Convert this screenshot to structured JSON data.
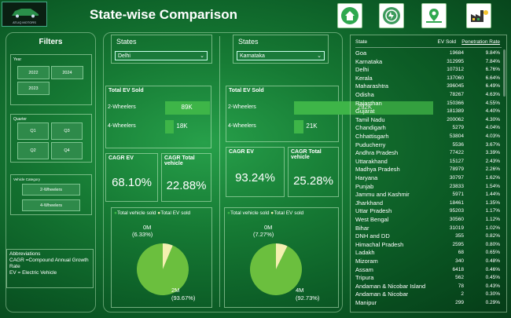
{
  "header": {
    "title": "State-wise Comparison",
    "logo_text": "ATLIQ MOTORS",
    "nav_icons": [
      "home-icon",
      "ev-icon",
      "map-icon",
      "factory-icon"
    ]
  },
  "filters": {
    "title": "Filters",
    "year": {
      "label": "Year",
      "options": [
        "2022",
        "2024",
        "2023"
      ]
    },
    "quarter": {
      "label": "Quarter",
      "options": [
        "Q1",
        "Q3",
        "Q2",
        "Q4"
      ]
    },
    "vehicle": {
      "label": "Vehicle Category",
      "options": [
        "2-Wheelers",
        "4-Wheelers"
      ]
    },
    "abbrev": {
      "heading": "Abbreviations",
      "line1": "CAGR =Compound Annual Growth Rate",
      "line2": "EV = Electric Vehicle"
    }
  },
  "left": {
    "states_label": "States",
    "selected": "Delhi",
    "total_label": "Total EV Sold",
    "cat1": "2-Wheelers",
    "cat1_val": "89K",
    "cat1_frac": 0.3,
    "cat2": "4-Wheelers",
    "cat2_val": "18K",
    "cat2_frac": 0.06,
    "cagr_label": "CAGR EV",
    "cagr_val": "68.10%",
    "cagr_total_label": "CAGR Total vehicle",
    "cagr_total_val": "22.88%",
    "legend1": "Total vehicle sold",
    "legend2": "Total EV sold",
    "pie_small": "0M",
    "pie_small_pct": "(6.33%)",
    "pie_big": "2M",
    "pie_big_pct": "(93.67%)",
    "pie_frac": 0.0633
  },
  "right": {
    "states_label": "States",
    "selected": "Karnataka",
    "total_label": "Total EV Sold",
    "cat1": "2-Wheelers",
    "cat1_val": "292K",
    "cat1_frac": 1.0,
    "cat2": "4-Wheelers",
    "cat2_val": "21K",
    "cat2_frac": 0.07,
    "cagr_label": "CAGR EV",
    "cagr_val": "93.24%",
    "cagr_total_label": "CAGR Total vehicle",
    "cagr_total_val": "25.28%",
    "legend1": "Total vehicle sold",
    "legend2": "Total EV sold",
    "pie_small": "0M",
    "pie_small_pct": "(7.27%)",
    "pie_big": "4M",
    "pie_big_pct": "(92.73%)",
    "pie_frac": 0.0727
  },
  "table": {
    "headers": [
      "State",
      "EV Sold",
      "Penetration Rate"
    ],
    "rows": [
      [
        "Goa",
        "19684",
        "9.84%"
      ],
      [
        "Karnataka",
        "312995",
        "7.84%"
      ],
      [
        "Delhi",
        "107312",
        "6.76%"
      ],
      [
        "Kerala",
        "137060",
        "6.64%"
      ],
      [
        "Maharashtra",
        "396045",
        "6.49%"
      ],
      [
        "Odisha",
        "78267",
        "4.63%"
      ],
      [
        "Rajasthan",
        "150366",
        "4.55%"
      ],
      [
        "Gujarat",
        "181389",
        "4.40%"
      ],
      [
        "Tamil Nadu",
        "200062",
        "4.30%"
      ],
      [
        "Chandigarh",
        "5279",
        "4.04%"
      ],
      [
        "Chhattisgarh",
        "53804",
        "4.03%"
      ],
      [
        "Puducherry",
        "5536",
        "3.67%"
      ],
      [
        "Andhra Pradesh",
        "77422",
        "3.39%"
      ],
      [
        "Uttarakhand",
        "15127",
        "2.43%"
      ],
      [
        "Madhya Pradesh",
        "78979",
        "2.26%"
      ],
      [
        "Haryana",
        "30797",
        "1.62%"
      ],
      [
        "Punjab",
        "23833",
        "1.54%"
      ],
      [
        "Jammu and Kashmir",
        "5971",
        "1.44%"
      ],
      [
        "Jharkhand",
        "18461",
        "1.35%"
      ],
      [
        "Uttar Pradesh",
        "95203",
        "1.17%"
      ],
      [
        "West Bengal",
        "30560",
        "1.12%"
      ],
      [
        "Bihar",
        "31019",
        "1.02%"
      ],
      [
        "DNH and DD",
        "355",
        "0.82%"
      ],
      [
        "Himachal Pradesh",
        "2595",
        "0.80%"
      ],
      [
        "Ladakh",
        "68",
        "0.65%"
      ],
      [
        "Mizoram",
        "340",
        "0.48%"
      ],
      [
        "Assam",
        "6418",
        "0.46%"
      ],
      [
        "Tripura",
        "562",
        "0.45%"
      ],
      [
        "Andaman & Nicobar Island",
        "78",
        "0.43%"
      ],
      [
        "Andaman & Nicobar",
        "2",
        "0.30%"
      ],
      [
        "Manipur",
        "299",
        "0.29%"
      ]
    ]
  }
}
